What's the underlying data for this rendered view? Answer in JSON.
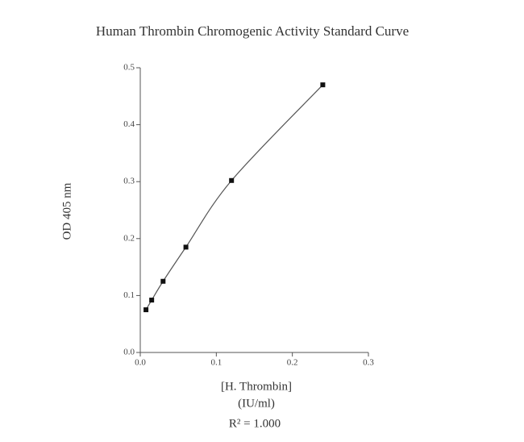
{
  "chart_data": {
    "type": "scatter",
    "title": "Human Thrombin Chromogenic Activity Standard Curve",
    "x_label": [
      "[H. Thrombin]",
      "(IU/ml)"
    ],
    "y_label": "OD 405 nm",
    "annotation": "R² = 1.000",
    "x": [
      0.0075,
      0.015,
      0.03,
      0.06,
      0.12,
      0.24
    ],
    "values": [
      0.075,
      0.092,
      0.125,
      0.185,
      0.302,
      0.47
    ],
    "color": "#111111",
    "line_color": "#555555",
    "fit_line": true,
    "xlim": [
      0,
      0.3
    ],
    "ylim": [
      0,
      0.5
    ],
    "xticks": [
      {
        "value": 0,
        "label": "0.0"
      },
      0.1,
      0.2,
      0.3
    ],
    "yticks": [
      {
        "value": 0,
        "label": "0.0"
      },
      0.1,
      0.2,
      0.3,
      0.4,
      0.5
    ]
  }
}
